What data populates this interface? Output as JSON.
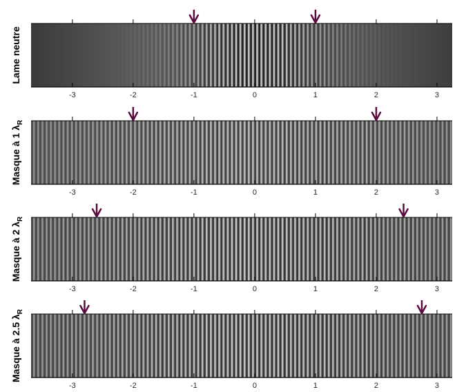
{
  "ticks": [
    "-3",
    "-2",
    "-1",
    "0",
    "1",
    "2",
    "3"
  ],
  "arrow_color": "#5b0a3f",
  "rows": [
    {
      "label": "Lame neutre",
      "sub": "",
      "arrows": [
        -1,
        1
      ],
      "contrast": "center"
    },
    {
      "label": "Masque à 1 λ",
      "sub": "R",
      "arrows": [
        -2,
        2
      ],
      "contrast": "flat"
    },
    {
      "label": "Masque à 2 λ",
      "sub": "R",
      "arrows": [
        -2.6,
        2.45
      ],
      "contrast": "flat-high"
    },
    {
      "label": "Masque à 2.5 λ",
      "sub": "R",
      "arrows": [
        -2.8,
        2.75
      ],
      "contrast": "flat-high"
    }
  ]
}
